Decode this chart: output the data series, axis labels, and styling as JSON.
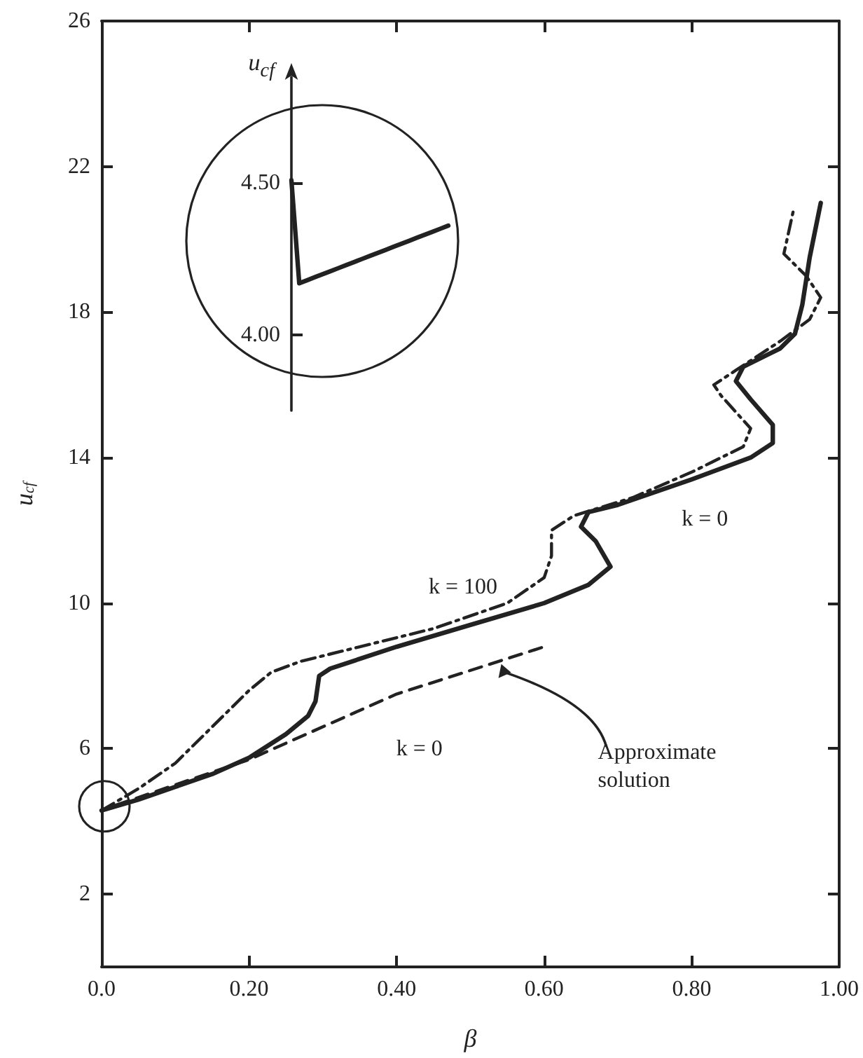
{
  "chart_data": [
    {
      "type": "line",
      "xlabel": "β",
      "ylabel": "u$_{cf}$",
      "xlim": [
        0,
        1
      ],
      "ylim": [
        0,
        26
      ],
      "xticks": [
        {
          "value": 0,
          "label": "0.0"
        },
        {
          "value": 0.2,
          "label": "0.20"
        },
        {
          "value": 0.4,
          "label": "0.40"
        },
        {
          "value": 0.6,
          "label": "0.60"
        },
        {
          "value": 0.8,
          "label": "0.80"
        },
        {
          "value": 1,
          "label": "1.00"
        }
      ],
      "yticks": [
        2,
        6,
        10,
        14,
        18,
        22,
        26
      ],
      "grid": false,
      "marker": "none",
      "series": [
        {
          "color": "#222222",
          "line_style": "solid",
          "x": [
            0,
            0.05,
            0.1,
            0.15,
            0.2,
            0.25,
            0.28,
            0.29,
            0.295,
            0.31,
            0.4,
            0.5,
            0.6,
            0.66,
            0.69,
            0.67,
            0.65,
            0.66,
            0.7,
            0.8,
            0.88,
            0.91,
            0.91,
            0.88,
            0.86,
            0.87,
            0.92,
            0.94,
            0.95,
            0.96,
            0.975
          ],
          "values": [
            4.3,
            4.6,
            4.95,
            5.3,
            5.75,
            6.4,
            6.9,
            7.3,
            8.0,
            8.2,
            8.8,
            9.4,
            10.0,
            10.5,
            11.0,
            11.7,
            12.1,
            12.5,
            12.7,
            13.4,
            14.0,
            14.4,
            14.9,
            15.6,
            16.1,
            16.5,
            17.0,
            17.4,
            18.2,
            19.5,
            21.0
          ]
        },
        {
          "color": "#222222",
          "line_style": "dashdot",
          "x": [
            0,
            0.05,
            0.1,
            0.15,
            0.2,
            0.23,
            0.27,
            0.35,
            0.45,
            0.55,
            0.6,
            0.61,
            0.61,
            0.64,
            0.72,
            0.8,
            0.87,
            0.88,
            0.84,
            0.83,
            0.86,
            0.92,
            0.96,
            0.975,
            0.955,
            0.925,
            0.938
          ],
          "values": [
            4.3,
            4.9,
            5.6,
            6.6,
            7.6,
            8.1,
            8.4,
            8.8,
            9.3,
            10.0,
            10.7,
            11.3,
            12.0,
            12.4,
            12.9,
            13.6,
            14.3,
            14.8,
            15.7,
            16.0,
            16.4,
            17.2,
            17.8,
            18.4,
            19.0,
            19.6,
            20.8
          ]
        },
        {
          "color": "#222222",
          "line_style": "dashed",
          "x": [
            0.02,
            0.2,
            0.4,
            0.6
          ],
          "values": [
            4.45,
            5.7,
            7.5,
            8.8
          ]
        }
      ],
      "annotations": [
        {
          "text": "k = 100",
          "x": 0.49,
          "y": 9.6
        },
        {
          "text": "k = 0",
          "x": 0.78,
          "y": 13.3
        },
        {
          "text": "k = 0",
          "x": 0.45,
          "y": 7.6
        },
        {
          "text": "Approximate solution",
          "x": 0.54,
          "y": 8.4
        }
      ]
    },
    {
      "type": "line",
      "ylabel": "u$_{cf}$",
      "categories": [
        null,
        null,
        null,
        null,
        null,
        null,
        null,
        null,
        null,
        null,
        null,
        null,
        null,
        null,
        null,
        null,
        null,
        null,
        null,
        null,
        null
      ],
      "ylim": [
        3.75,
        4.85
      ],
      "yticks": [
        {
          "value": 4.0,
          "label": "4.00"
        },
        {
          "value": 4.5,
          "label": "4.50"
        }
      ],
      "tick_labels": "y",
      "grid": false,
      "marker": "none",
      "series": [
        {
          "color": "#222222",
          "line_style": "solid",
          "values": [
            4.51,
            4.17,
            4.18,
            4.19,
            4.2,
            4.21,
            4.22,
            4.23,
            4.24,
            4.25,
            4.26,
            4.27,
            4.28,
            4.29,
            4.3,
            4.31,
            4.32,
            4.33,
            4.34,
            4.35,
            4.36
          ]
        }
      ]
    }
  ]
}
